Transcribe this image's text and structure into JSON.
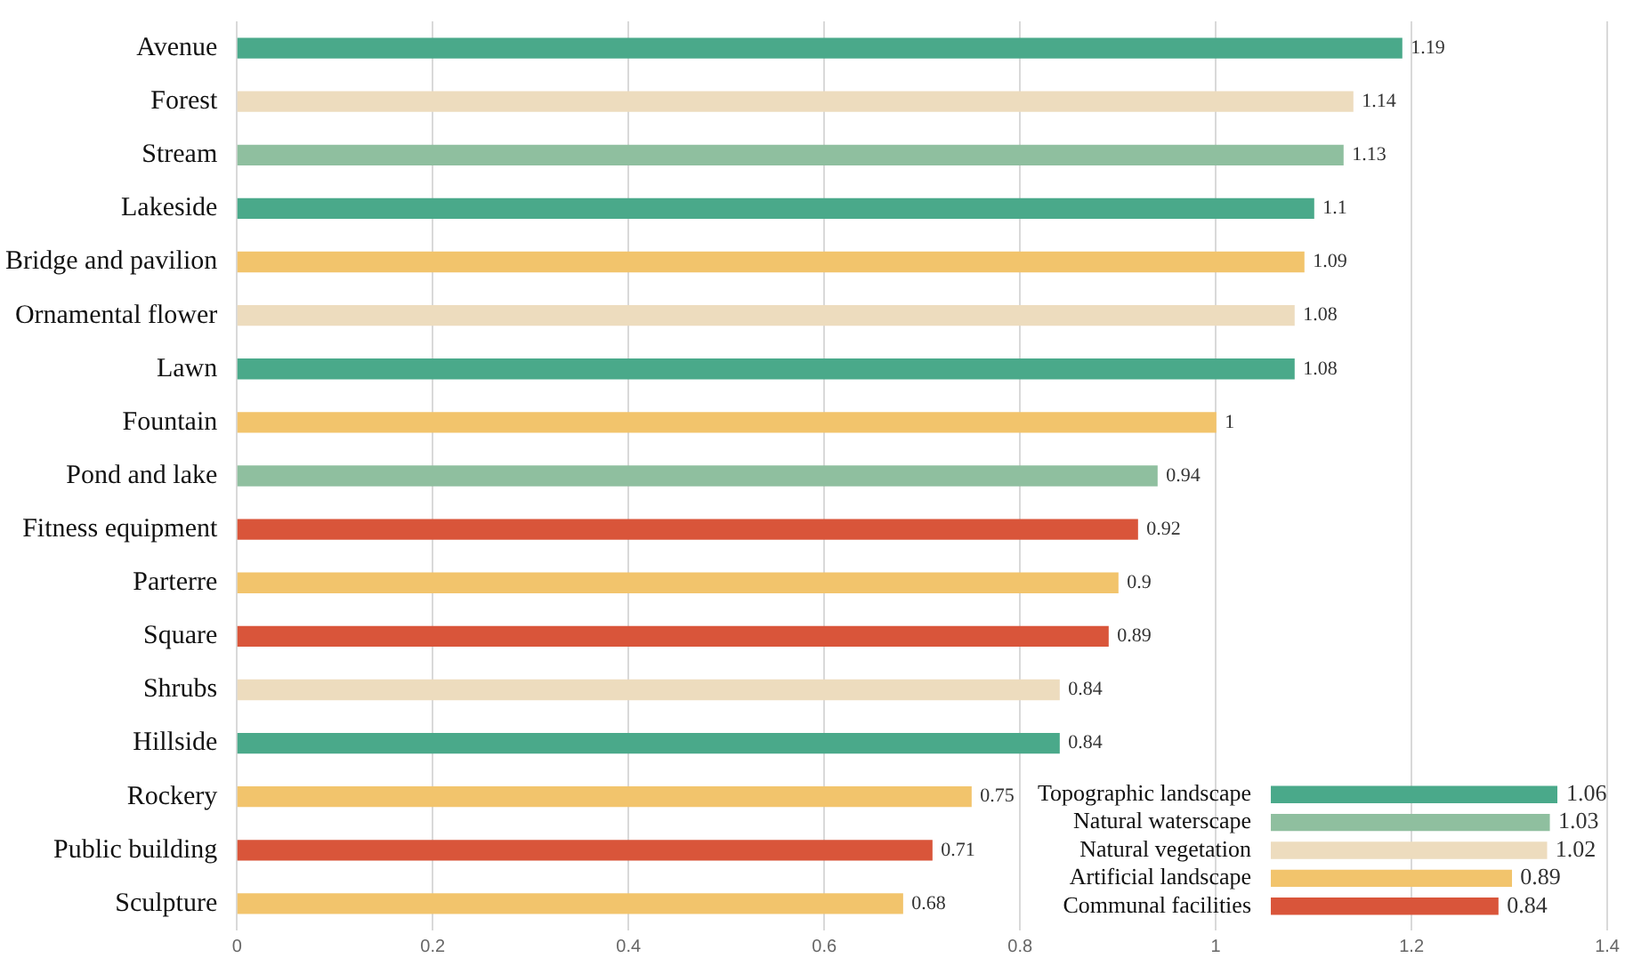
{
  "chart_data": [
    {
      "type": "bar",
      "orientation": "horizontal",
      "categories": [
        "Avenue",
        "Forest",
        "Stream",
        "Lakeside",
        "Bridge and pavilion",
        "Ornamental flower",
        "Lawn",
        "Fountain",
        "Pond and lake",
        "Fitness equipment",
        "Parterre",
        "Square",
        "Shrubs",
        "Hillside",
        "Rockery",
        "Public building",
        "Sculpture"
      ],
      "values": [
        1.19,
        1.14,
        1.13,
        1.1,
        1.09,
        1.08,
        1.08,
        1,
        0.94,
        0.92,
        0.9,
        0.89,
        0.84,
        0.84,
        0.75,
        0.71,
        0.68
      ],
      "colors": [
        "#4aa98a",
        "#eddcbe",
        "#8fbf9f",
        "#4aa98a",
        "#f2c46c",
        "#eddcbe",
        "#4aa98a",
        "#f2c46c",
        "#8fbf9f",
        "#d9553a",
        "#f2c46c",
        "#d9553a",
        "#eddcbe",
        "#4aa98a",
        "#f2c46c",
        "#d9553a",
        "#f2c46c"
      ],
      "xlim": [
        0,
        1.4
      ],
      "xticks": [
        0,
        0.2,
        0.4,
        0.6,
        0.8,
        1,
        1.2,
        1.4
      ],
      "grid": "x",
      "data_labels": true
    },
    {
      "type": "bar",
      "orientation": "horizontal",
      "categories": [
        "Topographic landscape",
        "Natural waterscape",
        "Natural vegetation",
        "Artificial landscape",
        "Communal facilities"
      ],
      "values": [
        1.06,
        1.03,
        1.02,
        0.89,
        0.84
      ],
      "colors": [
        "#4aa98a",
        "#8fbf9f",
        "#eddcbe",
        "#f2c46c",
        "#d9553a"
      ],
      "data_labels": true,
      "tick_labels": "y"
    }
  ]
}
